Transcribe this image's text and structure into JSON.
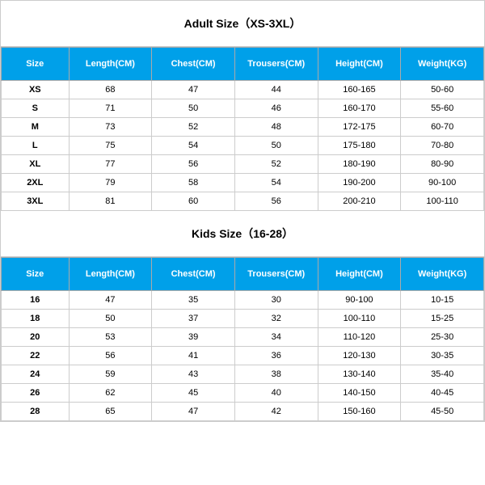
{
  "header_bg": "#00a0e9",
  "header_color": "#ffffff",
  "border_color": "#cccccc",
  "adult": {
    "title": "Adult Size（XS-3XL）",
    "columns": [
      "Size",
      "Length(CM)",
      "Chest(CM)",
      "Trousers(CM)",
      "Height(CM)",
      "Weight(KG)"
    ],
    "rows": [
      [
        "XS",
        "68",
        "47",
        "44",
        "160-165",
        "50-60"
      ],
      [
        "S",
        "71",
        "50",
        "46",
        "160-170",
        "55-60"
      ],
      [
        "M",
        "73",
        "52",
        "48",
        "172-175",
        "60-70"
      ],
      [
        "L",
        "75",
        "54",
        "50",
        "175-180",
        "70-80"
      ],
      [
        "XL",
        "77",
        "56",
        "52",
        "180-190",
        "80-90"
      ],
      [
        "2XL",
        "79",
        "58",
        "54",
        "190-200",
        "90-100"
      ],
      [
        "3XL",
        "81",
        "60",
        "56",
        "200-210",
        "100-110"
      ]
    ]
  },
  "kids": {
    "title": "Kids Size（16-28）",
    "columns": [
      "Size",
      "Length(CM)",
      "Chest(CM)",
      "Trousers(CM)",
      "Height(CM)",
      "Weight(KG)"
    ],
    "rows": [
      [
        "16",
        "47",
        "35",
        "30",
        "90-100",
        "10-15"
      ],
      [
        "18",
        "50",
        "37",
        "32",
        "100-110",
        "15-25"
      ],
      [
        "20",
        "53",
        "39",
        "34",
        "110-120",
        "25-30"
      ],
      [
        "22",
        "56",
        "41",
        "36",
        "120-130",
        "30-35"
      ],
      [
        "24",
        "59",
        "43",
        "38",
        "130-140",
        "35-40"
      ],
      [
        "26",
        "62",
        "45",
        "40",
        "140-150",
        "40-45"
      ],
      [
        "28",
        "65",
        "47",
        "42",
        "150-160",
        "45-50"
      ]
    ]
  }
}
